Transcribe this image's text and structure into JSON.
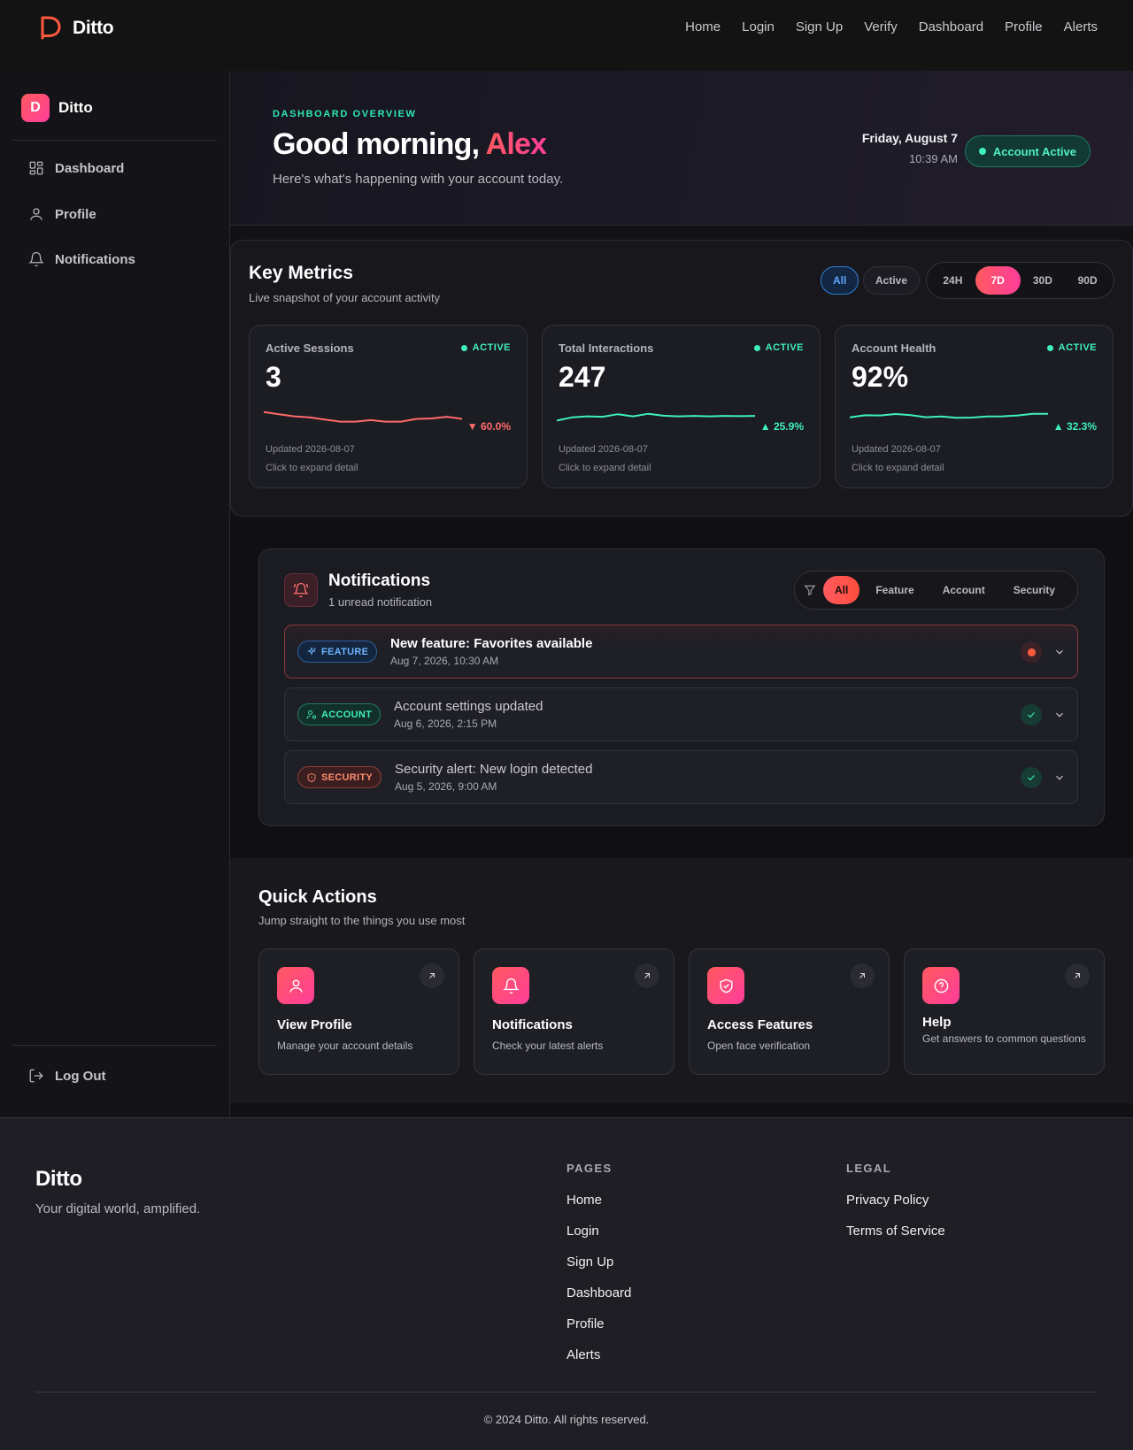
{
  "topnav": {
    "brand": "Ditto",
    "links": [
      "Home",
      "Login",
      "Sign Up",
      "Verify",
      "Dashboard",
      "Profile",
      "Alerts"
    ]
  },
  "sidebar": {
    "brand_letter": "D",
    "brand": "Ditto",
    "items": [
      {
        "label": "Dashboard",
        "icon": "dashboard-icon"
      },
      {
        "label": "Profile",
        "icon": "user-icon"
      },
      {
        "label": "Notifications",
        "icon": "bell-icon"
      }
    ],
    "logout": "Log Out"
  },
  "hero": {
    "kicker": "DASHBOARD OVERVIEW",
    "greeting": "Good morning, ",
    "name": "Alex",
    "subtitle": "Here's what's happening with your account today.",
    "date": "Friday, August 7",
    "time": "10:39 AM",
    "status": "Account Active"
  },
  "metrics": {
    "title": "Key Metrics",
    "subtitle": "Live snapshot of your account activity",
    "filters": [
      "All",
      "Active"
    ],
    "ranges": [
      "24H",
      "7D",
      "30D",
      "90D"
    ],
    "selected_range": "7D",
    "cards": [
      {
        "label": "Active Sessions",
        "badge": "ACTIVE",
        "value": "3",
        "change": "▼ 60.0%",
        "trend": "down",
        "updated": "Updated 2026-08-07",
        "hint": "Click to expand detail",
        "spark": [
          8,
          7,
          6,
          5.5,
          4.5,
          3.5,
          3.5,
          4.2,
          3.5,
          3.5,
          4.8,
          5,
          5.8,
          4.8
        ]
      },
      {
        "label": "Total Interactions",
        "badge": "ACTIVE",
        "value": "247",
        "change": "▲ 25.9%",
        "trend": "up",
        "updated": "Updated 2026-08-07",
        "hint": "Click to expand detail",
        "spark": [
          4,
          5.5,
          6,
          5.8,
          7,
          6,
          7.2,
          6.3,
          6,
          6.2,
          6,
          6.2,
          6.1,
          6.2
        ]
      },
      {
        "label": "Account Health",
        "badge": "ACTIVE",
        "value": "92%",
        "change": "▲ 32.3%",
        "trend": "up",
        "updated": "Updated 2026-08-07",
        "hint": "Click to expand detail",
        "spark": [
          5.5,
          6.5,
          6.4,
          7.1,
          6.6,
          5.6,
          5.9,
          5.3,
          5.4,
          5.9,
          6,
          6.4,
          7.2,
          7.2
        ]
      }
    ],
    "colors": {
      "down": "#ff6b6b",
      "up": "#3ff0bd"
    }
  },
  "notifications": {
    "title": "Notifications",
    "subtitle": "1 unread notification",
    "filters": [
      "All",
      "Feature",
      "Account",
      "Security"
    ],
    "items": [
      {
        "tag": "FEATURE",
        "title": "New feature: Favorites available",
        "time": "Aug 7, 2026, 10:30 AM",
        "unread": true
      },
      {
        "tag": "ACCOUNT",
        "title": "Account settings updated",
        "time": "Aug 6, 2026, 2:15 PM",
        "unread": false
      },
      {
        "tag": "SECURITY",
        "title": "Security alert: New login detected",
        "time": "Aug 5, 2026, 9:00 AM",
        "unread": false
      }
    ]
  },
  "quick_actions": {
    "title": "Quick Actions",
    "subtitle": "Jump straight to the things you use most",
    "items": [
      {
        "name": "View Profile",
        "desc": "Manage your account details",
        "icon": "user-icon"
      },
      {
        "name": "Notifications",
        "desc": "Check your latest alerts",
        "icon": "bell-icon"
      },
      {
        "name": "Access Features",
        "desc": "Open face verification",
        "icon": "shield-check-icon"
      },
      {
        "name": "Help",
        "desc": "Get answers to common questions",
        "icon": "help-circle-icon"
      }
    ]
  },
  "footer": {
    "brand": "Ditto",
    "tagline": "Your digital world, amplified.",
    "pages_heading": "PAGES",
    "pages": [
      "Home",
      "Login",
      "Sign Up",
      "Dashboard",
      "Profile",
      "Alerts"
    ],
    "legal_heading": "LEGAL",
    "legal": [
      "Privacy Policy",
      "Terms of Service"
    ],
    "copyright": "© 2024 Ditto. All rights reserved."
  }
}
